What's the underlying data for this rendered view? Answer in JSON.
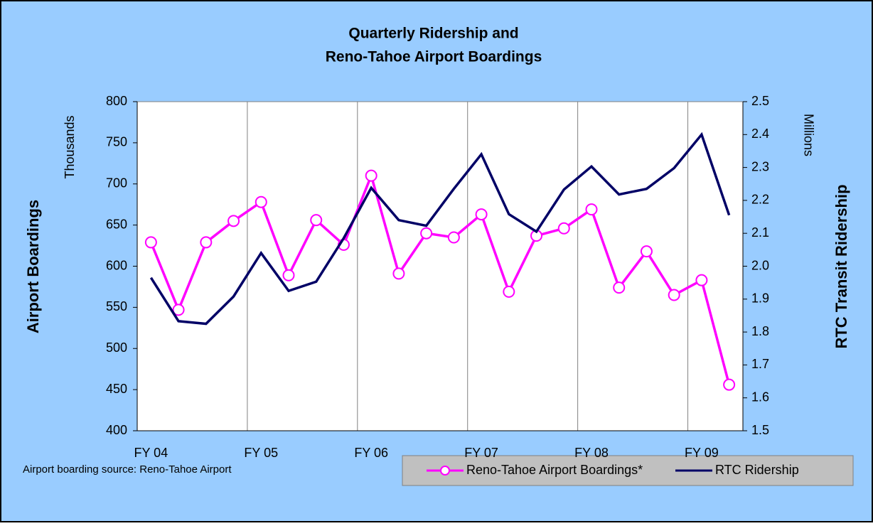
{
  "chart_data": {
    "type": "line",
    "title": [
      "Quarterly Ridership and",
      "Reno-Tahoe Airport Boardings"
    ],
    "y_label": "Airport Boardings",
    "y_units": "Thousands",
    "y2_label": "RTC Transit Ridership",
    "y2_units": "Millions",
    "source": "Airport boarding source: Reno-Tahoe Airport",
    "categories": [
      "FY 04",
      null,
      null,
      null,
      "FY 05",
      null,
      null,
      null,
      "FY 06",
      null,
      null,
      null,
      "FY 07",
      null,
      null,
      null,
      "FY 08",
      null,
      null,
      null,
      "FY 09",
      null
    ],
    "ylim": [
      400,
      800
    ],
    "yticks": [
      400,
      450,
      500,
      550,
      600,
      650,
      700,
      750,
      800
    ],
    "y2lim": [
      1.5,
      2.5
    ],
    "y2ticks": [
      1.5,
      1.6,
      1.7,
      1.8,
      1.9,
      {
        "value": 2,
        "label": "2.0"
      },
      2.1,
      2.2,
      2.3,
      2.4,
      2.5
    ],
    "legend": "bottom-right",
    "series": [
      {
        "name": "Reno-Tahoe Airport Boardings*",
        "color": "#ff00ff",
        "marker": "circle",
        "values": [
          629,
          547,
          629,
          655,
          678,
          589,
          656,
          626,
          710,
          591,
          640,
          635,
          663,
          569,
          637,
          646,
          669,
          574,
          618,
          565,
          583,
          456
        ]
      },
      {
        "name": "RTC Ridership",
        "color": "#000066",
        "axis": "y2",
        "values": [
          1.965,
          1.833,
          1.825,
          1.908,
          2.04,
          1.925,
          1.953,
          2.085,
          2.238,
          2.14,
          2.123,
          2.235,
          2.34,
          2.158,
          2.105,
          2.233,
          2.303,
          2.218,
          2.235,
          2.298,
          2.4,
          2.155
        ]
      }
    ]
  }
}
